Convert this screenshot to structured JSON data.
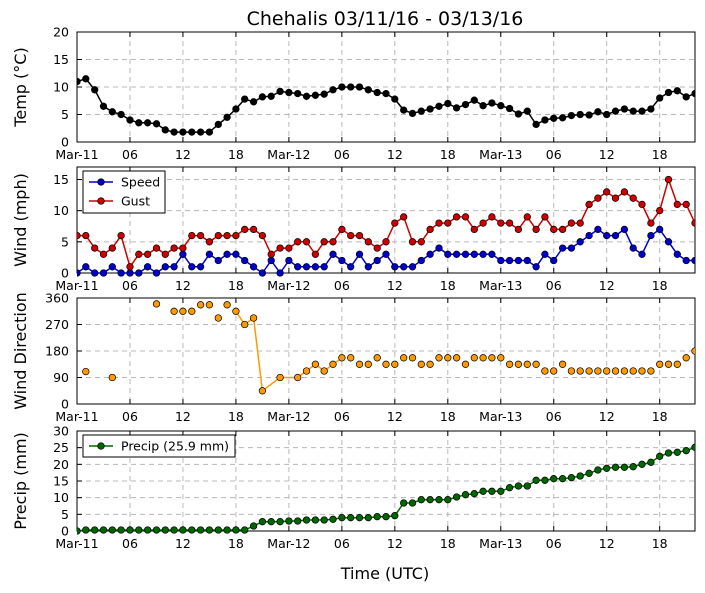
{
  "title": "Chehalis 03/11/16 - 03/13/16",
  "xlabel": "Time (UTC)",
  "x_tick_labels": [
    "Mar-11",
    "06",
    "12",
    "18",
    "Mar-12",
    "06",
    "12",
    "18",
    "Mar-13",
    "06",
    "12",
    "18"
  ],
  "x_tick_hours": [
    0,
    6,
    12,
    18,
    24,
    30,
    36,
    42,
    48,
    54,
    60,
    66
  ],
  "chart_data": [
    {
      "type": "line",
      "ylabel": "Temp (°C)",
      "ylim": [
        0,
        20
      ],
      "yticks": [
        0,
        5,
        10,
        15,
        20
      ],
      "xlim": [
        0,
        70
      ],
      "grid": true,
      "series": [
        {
          "color": "#000000",
          "x": [
            0,
            1,
            2,
            3,
            4,
            5,
            6,
            7,
            8,
            9,
            10,
            11,
            12,
            13,
            14,
            15,
            16,
            17,
            18,
            19,
            20,
            21,
            22,
            23,
            24,
            25,
            26,
            27,
            28,
            29,
            30,
            31,
            32,
            33,
            34,
            35,
            36,
            37,
            38,
            39,
            40,
            41,
            42,
            43,
            44,
            45,
            46,
            47,
            48,
            49,
            50,
            51,
            52,
            53,
            54,
            55,
            56,
            57,
            58,
            59,
            60,
            61,
            62,
            63,
            64,
            65,
            66,
            67,
            68,
            69,
            70
          ],
          "y": [
            11,
            11.5,
            9.5,
            6.5,
            5.5,
            5,
            4,
            3.5,
            3.5,
            3.3,
            2.2,
            1.8,
            1.8,
            1.8,
            1.8,
            1.8,
            3.2,
            4.5,
            6,
            7.8,
            7.3,
            8.2,
            8.3,
            9.2,
            9,
            8.8,
            8.3,
            8.5,
            8.7,
            9.5,
            10,
            10,
            10,
            9.5,
            9,
            8.8,
            7.8,
            5.8,
            5.2,
            5.6,
            6,
            6.5,
            7,
            6.2,
            6.8,
            7.6,
            6.6,
            7.1,
            6.6,
            6.1,
            5.1,
            5.6,
            3.2,
            4,
            4.3,
            4.4,
            4.8,
            5,
            4.9,
            5.5,
            5,
            5.6,
            6,
            5.6,
            5.6,
            6,
            8,
            9,
            9.3,
            8.2,
            8.8
          ]
        }
      ]
    },
    {
      "type": "line",
      "ylabel": "Wind (mph)",
      "ylim": [
        0,
        17
      ],
      "yticks": [
        0,
        5,
        10,
        15
      ],
      "xlim": [
        0,
        70
      ],
      "grid": true,
      "legend": "top-left",
      "series": [
        {
          "name": "Speed",
          "color": "#0000cc",
          "x": [
            0,
            1,
            2,
            3,
            4,
            5,
            6,
            7,
            8,
            9,
            10,
            11,
            12,
            13,
            14,
            15,
            16,
            17,
            18,
            19,
            20,
            21,
            22,
            23,
            24,
            25,
            26,
            27,
            28,
            29,
            30,
            31,
            32,
            33,
            34,
            35,
            36,
            37,
            38,
            39,
            40,
            41,
            42,
            43,
            44,
            45,
            46,
            47,
            48,
            49,
            50,
            51,
            52,
            53,
            54,
            55,
            56,
            57,
            58,
            59,
            60,
            61,
            62,
            63,
            64,
            65,
            66,
            67,
            68,
            69,
            70
          ],
          "y": [
            0,
            1,
            0,
            0,
            1,
            0,
            0,
            0,
            1,
            0,
            1,
            1,
            3,
            1,
            1,
            3,
            2,
            3,
            3,
            2,
            1,
            0,
            2,
            0,
            2,
            1,
            1,
            1,
            1,
            3,
            2,
            1,
            3,
            1,
            2,
            3,
            1,
            1,
            1,
            2,
            3,
            4,
            3,
            3,
            3,
            3,
            3,
            3,
            2,
            2,
            2,
            2,
            1,
            3,
            2,
            4,
            4,
            5,
            6,
            7,
            6,
            6,
            7,
            4,
            3,
            6,
            7,
            5,
            3,
            2,
            2
          ]
        },
        {
          "name": "Gust",
          "color": "#cc0000",
          "x": [
            0,
            1,
            2,
            3,
            4,
            5,
            6,
            7,
            8,
            9,
            10,
            11,
            12,
            13,
            14,
            15,
            16,
            17,
            18,
            19,
            20,
            21,
            22,
            23,
            24,
            25,
            26,
            27,
            28,
            29,
            30,
            31,
            32,
            33,
            34,
            35,
            36,
            37,
            38,
            39,
            40,
            41,
            42,
            43,
            44,
            45,
            46,
            47,
            48,
            49,
            50,
            51,
            52,
            53,
            54,
            55,
            56,
            57,
            58,
            59,
            60,
            61,
            62,
            63,
            64,
            65,
            66,
            67,
            68,
            69,
            70
          ],
          "y": [
            6,
            6,
            4,
            3,
            4,
            6,
            1,
            3,
            3,
            4,
            3,
            4,
            4,
            6,
            6,
            5,
            6,
            6,
            6,
            7,
            7,
            6,
            3,
            4,
            4,
            5,
            5,
            3,
            5,
            5,
            7,
            6,
            6,
            5,
            4,
            5,
            8,
            9,
            5,
            5,
            7,
            8,
            8,
            9,
            9,
            7,
            8,
            9,
            8,
            8,
            7,
            9,
            7,
            9,
            7,
            7,
            8,
            8,
            11,
            12,
            13,
            12,
            13,
            12,
            11,
            8,
            10,
            15,
            11,
            11,
            8
          ]
        }
      ]
    },
    {
      "type": "scatter",
      "ylabel": "Wind Direction",
      "ylim": [
        0,
        360
      ],
      "yticks": [
        0,
        90,
        180,
        270,
        360
      ],
      "xlim": [
        0,
        70
      ],
      "grid": true,
      "series": [
        {
          "color": "#ff9900",
          "points": [
            [
              1,
              110
            ],
            [
              4,
              90
            ],
            [
              9,
              340
            ],
            [
              11,
              315
            ],
            [
              12,
              315
            ],
            [
              13,
              315
            ],
            [
              14,
              337
            ],
            [
              15,
              337
            ],
            [
              16,
              292
            ],
            [
              17,
              337
            ],
            [
              18,
              315
            ],
            [
              19,
              270
            ],
            [
              20,
              292
            ],
            [
              21,
              45
            ],
            [
              23,
              90
            ],
            [
              25,
              90
            ],
            [
              26,
              112
            ],
            [
              27,
              135
            ],
            [
              28,
              112
            ],
            [
              29,
              135
            ],
            [
              30,
              157
            ],
            [
              31,
              157
            ],
            [
              32,
              135
            ],
            [
              33,
              135
            ],
            [
              34,
              157
            ],
            [
              35,
              135
            ],
            [
              36,
              135
            ],
            [
              37,
              157
            ],
            [
              38,
              157
            ],
            [
              39,
              135
            ],
            [
              40,
              135
            ],
            [
              41,
              157
            ],
            [
              42,
              157
            ],
            [
              43,
              157
            ],
            [
              44,
              135
            ],
            [
              45,
              157
            ],
            [
              46,
              157
            ],
            [
              47,
              157
            ],
            [
              48,
              157
            ],
            [
              49,
              135
            ],
            [
              50,
              135
            ],
            [
              51,
              135
            ],
            [
              52,
              135
            ],
            [
              53,
              112
            ],
            [
              54,
              112
            ],
            [
              55,
              135
            ],
            [
              56,
              112
            ],
            [
              57,
              112
            ],
            [
              58,
              112
            ],
            [
              59,
              112
            ],
            [
              60,
              112
            ],
            [
              61,
              112
            ],
            [
              62,
              112
            ],
            [
              63,
              112
            ],
            [
              64,
              112
            ],
            [
              65,
              112
            ],
            [
              66,
              135
            ],
            [
              67,
              135
            ],
            [
              68,
              135
            ],
            [
              69,
              157
            ],
            [
              70,
              180
            ],
            [
              71,
              180
            ],
            [
              72,
              180
            ]
          ],
          "connected_runs": [
            [
              10,
              20
            ]
          ]
        }
      ]
    },
    {
      "type": "line",
      "ylabel": "Precip (mm)",
      "ylim": [
        0,
        30
      ],
      "yticks": [
        0,
        5,
        10,
        15,
        20,
        25,
        30
      ],
      "xlim": [
        0,
        70
      ],
      "grid": true,
      "legend": "top-left",
      "series": [
        {
          "name": "Precip (25.9 mm)",
          "color": "#006600",
          "x": [
            0,
            1,
            2,
            3,
            4,
            5,
            6,
            7,
            8,
            9,
            10,
            11,
            12,
            13,
            14,
            15,
            16,
            17,
            18,
            19,
            20,
            21,
            22,
            23,
            24,
            25,
            26,
            27,
            28,
            29,
            30,
            31,
            32,
            33,
            34,
            35,
            36,
            37,
            38,
            39,
            40,
            41,
            42,
            43,
            44,
            45,
            46,
            47,
            48,
            49,
            50,
            51,
            52,
            53,
            54,
            55,
            56,
            57,
            58,
            59,
            60,
            61,
            62,
            63,
            64,
            65,
            66,
            67,
            68,
            69,
            70
          ],
          "y": [
            0,
            0.3,
            0.3,
            0.3,
            0.3,
            0.3,
            0.3,
            0.3,
            0.3,
            0.3,
            0.3,
            0.3,
            0.3,
            0.3,
            0.3,
            0.3,
            0.3,
            0.3,
            0.3,
            0.3,
            1.5,
            2.8,
            2.8,
            2.8,
            3,
            3,
            3.3,
            3.3,
            3.3,
            3.5,
            4,
            4,
            4,
            4,
            4.3,
            4.3,
            4.6,
            8.4,
            8.4,
            9.4,
            9.4,
            9.4,
            9.4,
            10.2,
            10.9,
            11.2,
            11.9,
            11.9,
            11.9,
            13,
            13.5,
            13.5,
            15.2,
            15.2,
            15.7,
            15.7,
            16,
            16.5,
            17.3,
            18.3,
            18.8,
            19.1,
            19.1,
            19.3,
            20,
            20.6,
            22.4,
            23.4,
            23.6,
            24.1,
            25.1
          ]
        }
      ]
    }
  ]
}
